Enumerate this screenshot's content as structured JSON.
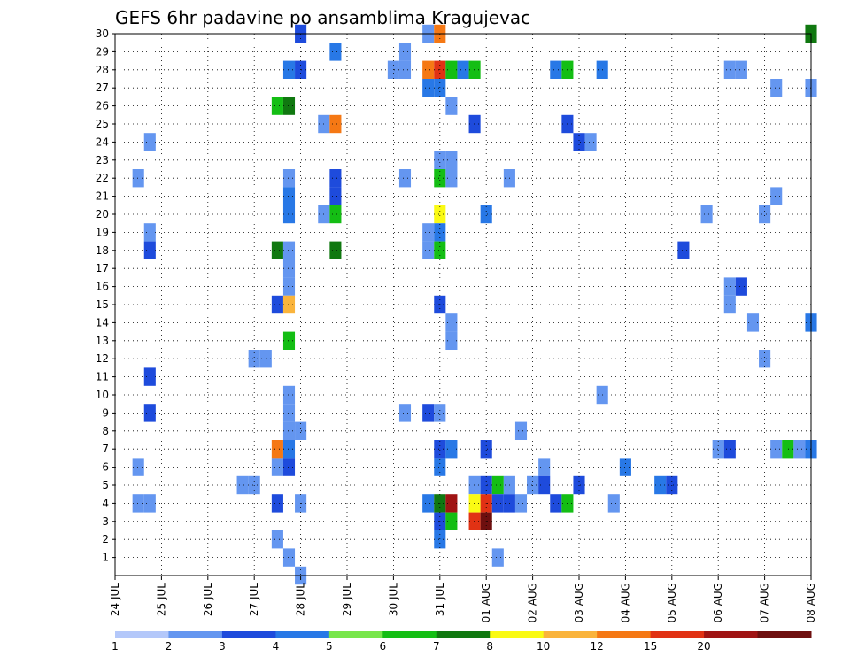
{
  "chart_data": {
    "type": "heatmap",
    "title": "GEFS 6hr padavine po ansamblima Kragujevac",
    "xlabel": "",
    "ylabel": "",
    "x_tick_labels": [
      "24 JUL",
      "25 JUL",
      "26 JUL",
      "27 JUL",
      "28 JUL",
      "29 JUL",
      "30 JUL",
      "31 JUL",
      "01 AUG",
      "02 AUG",
      "03 AUG",
      "04 AUG",
      "05 AUG",
      "06 AUG",
      "07 AUG",
      "08 AUG"
    ],
    "y_tick_labels": [
      "1",
      "2",
      "3",
      "4",
      "5",
      "6",
      "7",
      "8",
      "9",
      "10",
      "11",
      "12",
      "13",
      "14",
      "15",
      "16",
      "17",
      "18",
      "19",
      "20",
      "21",
      "22",
      "23",
      "24",
      "25",
      "26",
      "27",
      "28",
      "29",
      "30"
    ],
    "xlim_steps": [
      0,
      60
    ],
    "ylim": [
      0,
      30
    ],
    "step_hours": 6,
    "grid": true,
    "colorbar": {
      "levels": [
        "1",
        "2",
        "3",
        "4",
        "5",
        "6",
        "7",
        "8",
        "10",
        "12",
        "15",
        "20"
      ],
      "colors": [
        "#b4c8fa",
        "#6496f0",
        "#1e4bdc",
        "#2878e6",
        "#78e64b",
        "#14be14",
        "#107810",
        "#fafa14",
        "#fab43c",
        "#f57814",
        "#e13214",
        "#a01414",
        "#6e0f0f"
      ]
    },
    "cells": [
      [
        30,
        16,
        2
      ],
      [
        30,
        27,
        1
      ],
      [
        30,
        28,
        9
      ],
      [
        30,
        60,
        6
      ],
      [
        29,
        19,
        3
      ],
      [
        29,
        25,
        1
      ],
      [
        28,
        15,
        3
      ],
      [
        28,
        16,
        2
      ],
      [
        28,
        24,
        1
      ],
      [
        28,
        25,
        1
      ],
      [
        28,
        27,
        9
      ],
      [
        28,
        28,
        10
      ],
      [
        28,
        29,
        5
      ],
      [
        28,
        30,
        3
      ],
      [
        28,
        31,
        5
      ],
      [
        28,
        38,
        3
      ],
      [
        28,
        39,
        5
      ],
      [
        28,
        42,
        3
      ],
      [
        28,
        53,
        1
      ],
      [
        28,
        54,
        1
      ],
      [
        27,
        27,
        3
      ],
      [
        27,
        28,
        3
      ],
      [
        27,
        57,
        1
      ],
      [
        27,
        60,
        1
      ],
      [
        26,
        14,
        5
      ],
      [
        26,
        15,
        6
      ],
      [
        26,
        29,
        1
      ],
      [
        25,
        18,
        1
      ],
      [
        25,
        19,
        9
      ],
      [
        25,
        31,
        2
      ],
      [
        25,
        39,
        2
      ],
      [
        24,
        3,
        1
      ],
      [
        24,
        40,
        2
      ],
      [
        24,
        41,
        1
      ],
      [
        23,
        28,
        1
      ],
      [
        23,
        29,
        1
      ],
      [
        22,
        2,
        1
      ],
      [
        22,
        15,
        1
      ],
      [
        22,
        19,
        2
      ],
      [
        22,
        25,
        1
      ],
      [
        22,
        28,
        5
      ],
      [
        22,
        29,
        1
      ],
      [
        22,
        34,
        1
      ],
      [
        21,
        15,
        3
      ],
      [
        21,
        19,
        2
      ],
      [
        21,
        57,
        1
      ],
      [
        20,
        15,
        3
      ],
      [
        20,
        18,
        1
      ],
      [
        20,
        19,
        5
      ],
      [
        20,
        28,
        7
      ],
      [
        20,
        32,
        3
      ],
      [
        20,
        51,
        1
      ],
      [
        20,
        56,
        1
      ],
      [
        19,
        3,
        1
      ],
      [
        19,
        27,
        1
      ],
      [
        19,
        28,
        3
      ],
      [
        18,
        3,
        2
      ],
      [
        18,
        14,
        6
      ],
      [
        18,
        15,
        1
      ],
      [
        18,
        19,
        6
      ],
      [
        18,
        27,
        1
      ],
      [
        18,
        28,
        5
      ],
      [
        18,
        49,
        2
      ],
      [
        17,
        15,
        1
      ],
      [
        16,
        15,
        1
      ],
      [
        16,
        53,
        1
      ],
      [
        16,
        54,
        2
      ],
      [
        15,
        14,
        2
      ],
      [
        15,
        15,
        8
      ],
      [
        15,
        28,
        2
      ],
      [
        15,
        53,
        1
      ],
      [
        14,
        29,
        1
      ],
      [
        14,
        55,
        1
      ],
      [
        14,
        60,
        3
      ],
      [
        13,
        15,
        5
      ],
      [
        13,
        29,
        1
      ],
      [
        12,
        12,
        1
      ],
      [
        12,
        13,
        1
      ],
      [
        12,
        56,
        1
      ],
      [
        11,
        3,
        2
      ],
      [
        10,
        15,
        1
      ],
      [
        10,
        42,
        1
      ],
      [
        9,
        3,
        2
      ],
      [
        9,
        15,
        1
      ],
      [
        9,
        25,
        1
      ],
      [
        9,
        27,
        2
      ],
      [
        9,
        28,
        1
      ],
      [
        8,
        15,
        1
      ],
      [
        8,
        16,
        1
      ],
      [
        8,
        35,
        1
      ],
      [
        7,
        14,
        9
      ],
      [
        7,
        15,
        3
      ],
      [
        7,
        28,
        2
      ],
      [
        7,
        29,
        3
      ],
      [
        7,
        32,
        2
      ],
      [
        7,
        52,
        1
      ],
      [
        7,
        53,
        2
      ],
      [
        7,
        57,
        1
      ],
      [
        7,
        58,
        5
      ],
      [
        7,
        59,
        1
      ],
      [
        7,
        60,
        3
      ],
      [
        6,
        2,
        1
      ],
      [
        6,
        14,
        1
      ],
      [
        6,
        15,
        2
      ],
      [
        6,
        28,
        3
      ],
      [
        6,
        37,
        1
      ],
      [
        6,
        44,
        3
      ],
      [
        5,
        11,
        1
      ],
      [
        5,
        12,
        1
      ],
      [
        5,
        31,
        1
      ],
      [
        5,
        32,
        2
      ],
      [
        5,
        33,
        5
      ],
      [
        5,
        34,
        1
      ],
      [
        5,
        36,
        1
      ],
      [
        5,
        37,
        2
      ],
      [
        5,
        40,
        2
      ],
      [
        5,
        47,
        3
      ],
      [
        5,
        48,
        2
      ],
      [
        4,
        2,
        1
      ],
      [
        4,
        3,
        1
      ],
      [
        4,
        14,
        2
      ],
      [
        4,
        16,
        1
      ],
      [
        4,
        27,
        3
      ],
      [
        4,
        28,
        6
      ],
      [
        4,
        29,
        11
      ],
      [
        4,
        31,
        7
      ],
      [
        4,
        32,
        10
      ],
      [
        4,
        33,
        2
      ],
      [
        4,
        34,
        2
      ],
      [
        4,
        35,
        1
      ],
      [
        4,
        38,
        2
      ],
      [
        4,
        39,
        5
      ],
      [
        4,
        43,
        1
      ],
      [
        3,
        28,
        2
      ],
      [
        3,
        29,
        5
      ],
      [
        3,
        31,
        10
      ],
      [
        3,
        32,
        12
      ],
      [
        2,
        14,
        1
      ],
      [
        2,
        28,
        3
      ],
      [
        1,
        15,
        1
      ],
      [
        1,
        33,
        1
      ],
      [
        0,
        16,
        1
      ]
    ]
  }
}
